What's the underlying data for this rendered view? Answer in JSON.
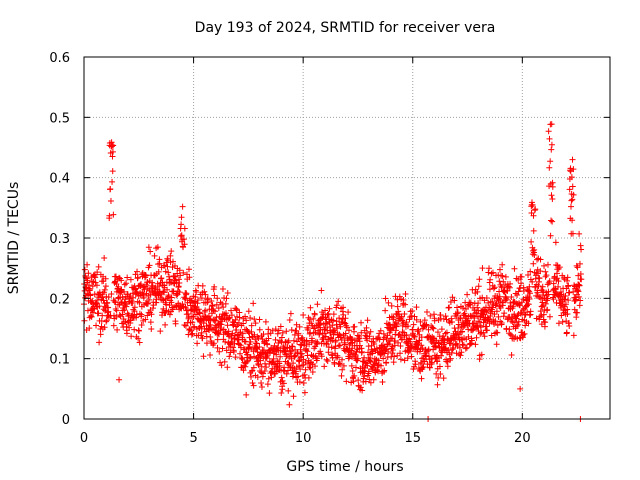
{
  "chart_data": {
    "type": "scatter",
    "title": "Day 193 of 2024, SRMTID for receiver vera",
    "xlabel": "GPS time / hours",
    "ylabel": "SRMTID / TECUs",
    "xlim": [
      0,
      24
    ],
    "ylim": [
      0,
      0.6
    ],
    "x_ticks": [
      0,
      5,
      10,
      15,
      20
    ],
    "x_tick_labels": [
      "0",
      "5",
      "10",
      "15",
      "20"
    ],
    "y_ticks": [
      0,
      0.1,
      0.2,
      0.3,
      0.4,
      0.5,
      0.6
    ],
    "y_tick_labels": [
      "0",
      "0.1",
      "0.2",
      "0.3",
      "0.4",
      "0.5",
      "0.6"
    ],
    "grid": true,
    "marker": "+",
    "series": [
      {
        "name": "SRMTID",
        "color": "#ff0000",
        "profile": [
          [
            0.0,
            0.22
          ],
          [
            0.5,
            0.2
          ],
          [
            1.0,
            0.19
          ],
          [
            1.5,
            0.2
          ],
          [
            2.0,
            0.19
          ],
          [
            2.5,
            0.2
          ],
          [
            3.0,
            0.21
          ],
          [
            3.5,
            0.22
          ],
          [
            4.0,
            0.22
          ],
          [
            4.5,
            0.2
          ],
          [
            5.0,
            0.18
          ],
          [
            5.5,
            0.17
          ],
          [
            6.0,
            0.16
          ],
          [
            6.5,
            0.15
          ],
          [
            7.0,
            0.14
          ],
          [
            7.5,
            0.12
          ],
          [
            8.0,
            0.11
          ],
          [
            8.5,
            0.1
          ],
          [
            9.0,
            0.1
          ],
          [
            9.5,
            0.1
          ],
          [
            10.0,
            0.11
          ],
          [
            10.5,
            0.13
          ],
          [
            11.0,
            0.15
          ],
          [
            11.5,
            0.14
          ],
          [
            12.0,
            0.12
          ],
          [
            12.5,
            0.11
          ],
          [
            13.0,
            0.1
          ],
          [
            13.5,
            0.11
          ],
          [
            14.0,
            0.14
          ],
          [
            14.5,
            0.16
          ],
          [
            15.0,
            0.13
          ],
          [
            15.5,
            0.12
          ],
          [
            16.0,
            0.12
          ],
          [
            16.5,
            0.13
          ],
          [
            17.0,
            0.15
          ],
          [
            17.5,
            0.16
          ],
          [
            18.0,
            0.17
          ],
          [
            18.5,
            0.18
          ],
          [
            19.0,
            0.2
          ],
          [
            19.5,
            0.19
          ],
          [
            20.0,
            0.18
          ],
          [
            20.5,
            0.23
          ],
          [
            21.0,
            0.2
          ],
          [
            21.5,
            0.22
          ],
          [
            22.0,
            0.18
          ],
          [
            22.5,
            0.22
          ],
          [
            22.7,
            0.24
          ]
        ],
        "spread": 0.05,
        "spikes": [
          {
            "x": 1.25,
            "y_range": [
              0.32,
              0.48
            ]
          },
          {
            "x": 21.3,
            "y_range": [
              0.3,
              0.5
            ]
          },
          {
            "x": 22.25,
            "y_range": [
              0.3,
              0.43
            ]
          },
          {
            "x": 20.5,
            "y_range": [
              0.27,
              0.37
            ]
          },
          {
            "x": 4.5,
            "y_range": [
              0.28,
              0.36
            ]
          }
        ],
        "outliers": [
          [
            15.7,
            0.0
          ],
          [
            22.65,
            0.0
          ],
          [
            1.6,
            0.065
          ],
          [
            7.4,
            0.04
          ],
          [
            19.9,
            0.05
          ]
        ],
        "sample_interval_hours": 0.01
      }
    ]
  }
}
